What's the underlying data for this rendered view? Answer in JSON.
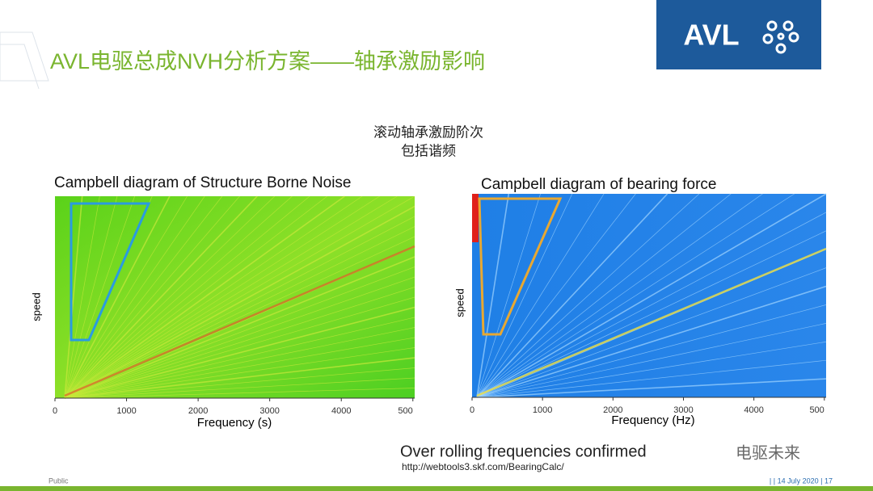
{
  "header": {
    "title": "AVL电驱总成NVH分析方案——轴承激励影响",
    "logo": "AVL"
  },
  "caption": [
    "滚动轴承激励阶次",
    "包括谐频"
  ],
  "panels": [
    {
      "title": "Campbell diagram of Structure Borne Noise",
      "y_label": "speed",
      "x_label": "Frequency (s)",
      "x_ticks": [
        "0",
        "1000",
        "2000",
        "3000",
        "4000",
        "500"
      ]
    },
    {
      "title": "Campbell diagram of bearing force",
      "y_label": "speed",
      "x_label": "Frequency (Hz)",
      "x_ticks": [
        "0",
        "1000",
        "2000",
        "3000",
        "4000",
        "500"
      ]
    }
  ],
  "note": {
    "text": "Over rolling frequencies confirmed",
    "url": "http://webtools3.skf.com/BearingCalc/",
    "watermark": "电驱未来"
  },
  "footer": {
    "left": "Public",
    "right": "|  | 14 July 2020 | 17"
  }
}
